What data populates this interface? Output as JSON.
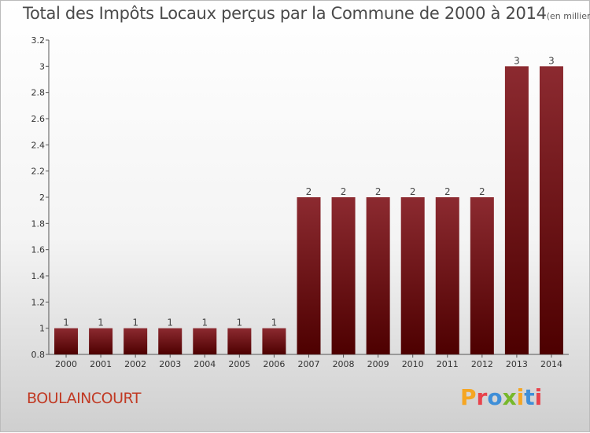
{
  "header": {
    "title": "Total des Impôts Locaux perçus par la Commune de 2000 à 2014",
    "unit": "(en milliers d'€)"
  },
  "footer": {
    "commune": "BOULAINCOURT",
    "logo": [
      "P",
      "r",
      "o",
      "x",
      "i",
      "t",
      "i"
    ],
    "logo_colors": [
      "#f5a623",
      "#e8434c",
      "#3f8fd8",
      "#77b82a",
      "#f5a623",
      "#3f8fd8",
      "#e8434c"
    ]
  },
  "chart_data": {
    "type": "bar",
    "categories": [
      "2000",
      "2001",
      "2002",
      "2003",
      "2004",
      "2005",
      "2006",
      "2007",
      "2008",
      "2009",
      "2010",
      "2011",
      "2012",
      "2013",
      "2014"
    ],
    "values": [
      1,
      1,
      1,
      1,
      1,
      1,
      1,
      2,
      2,
      2,
      2,
      2,
      2,
      3,
      3
    ],
    "data_labels": [
      "1",
      "1",
      "1",
      "1",
      "1",
      "1",
      "1",
      "2",
      "2",
      "2",
      "2",
      "2",
      "2",
      "3",
      "3"
    ],
    "ylim": [
      0.8,
      3.2
    ],
    "yticks": [
      "0.8",
      "1",
      "1.2",
      "1.4",
      "1.6",
      "1.8",
      "2",
      "2.2",
      "2.4",
      "2.6",
      "2.8",
      "3",
      "3.2"
    ],
    "grid": false,
    "bar_color_top": "#8c2a30",
    "bar_color_bottom": "#4d0000"
  }
}
